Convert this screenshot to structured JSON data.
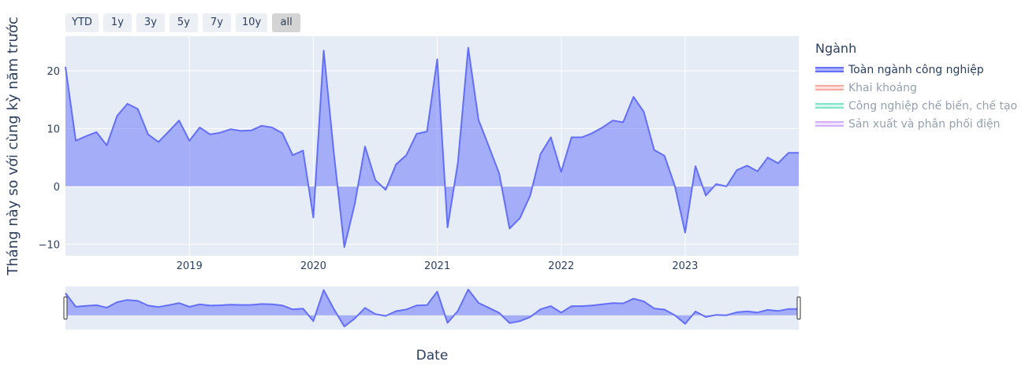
{
  "range_buttons": [
    {
      "label": "YTD",
      "active": false
    },
    {
      "label": "1y",
      "active": false
    },
    {
      "label": "3y",
      "active": false
    },
    {
      "label": "5y",
      "active": false
    },
    {
      "label": "7y",
      "active": false
    },
    {
      "label": "10y",
      "active": false
    },
    {
      "label": "all",
      "active": true
    }
  ],
  "legend": {
    "title": "Ngành",
    "items": [
      {
        "label": "Toàn ngành công nghiệp",
        "color": "#636efa",
        "visible": true
      },
      {
        "label": "Khai khoáng",
        "color": "#ef553b",
        "visible": false
      },
      {
        "label": "Công nghiệp chế biến, chế tạo",
        "color": "#00cc96",
        "visible": false
      },
      {
        "label": "Sản xuất và phân phối điện",
        "color": "#ab63fa",
        "visible": false
      }
    ]
  },
  "chart_data": {
    "type": "area",
    "title": "",
    "xlabel": "Date",
    "ylabel": "Tháng này so với cùng kỳ năm trước",
    "xlim": [
      "2018-01",
      "2023-12"
    ],
    "ylim": [
      -12,
      26
    ],
    "x_ticks": [
      "2019",
      "2020",
      "2021",
      "2022",
      "2023"
    ],
    "y_ticks": [
      -10,
      0,
      10,
      20
    ],
    "grid": true,
    "legend_position": "right",
    "rangeslider": true,
    "x": [
      "2018-01",
      "2018-02",
      "2018-03",
      "2018-04",
      "2018-05",
      "2018-06",
      "2018-07",
      "2018-08",
      "2018-09",
      "2018-10",
      "2018-11",
      "2018-12",
      "2019-01",
      "2019-02",
      "2019-03",
      "2019-04",
      "2019-05",
      "2019-06",
      "2019-07",
      "2019-08",
      "2019-09",
      "2019-10",
      "2019-11",
      "2019-12",
      "2020-01",
      "2020-02",
      "2020-03",
      "2020-04",
      "2020-05",
      "2020-06",
      "2020-07",
      "2020-08",
      "2020-09",
      "2020-10",
      "2020-11",
      "2020-12",
      "2021-01",
      "2021-02",
      "2021-03",
      "2021-04",
      "2021-05",
      "2021-06",
      "2021-07",
      "2021-08",
      "2021-09",
      "2021-10",
      "2021-11",
      "2021-12",
      "2022-01",
      "2022-02",
      "2022-03",
      "2022-04",
      "2022-05",
      "2022-06",
      "2022-07",
      "2022-08",
      "2022-09",
      "2022-10",
      "2022-11",
      "2022-12",
      "2023-01",
      "2023-02",
      "2023-03",
      "2023-04",
      "2023-05",
      "2023-06",
      "2023-07",
      "2023-08",
      "2023-09",
      "2023-10",
      "2023-11",
      "2023-12"
    ],
    "series": [
      {
        "name": "Toàn ngành công nghiệp",
        "color": "#636efa",
        "values": [
          20.7,
          7.9,
          8.7,
          9.4,
          7.1,
          12.2,
          14.3,
          13.4,
          9.0,
          7.7,
          9.5,
          11.4,
          7.9,
          10.2,
          9.0,
          9.3,
          9.9,
          9.6,
          9.7,
          10.5,
          10.2,
          9.2,
          5.4,
          6.2,
          -5.4,
          23.5,
          5.5,
          -10.5,
          -3.1,
          6.9,
          1.1,
          -0.6,
          3.8,
          5.4,
          9.1,
          9.5,
          22.0,
          -7.1,
          4.1,
          24.0,
          11.5,
          6.9,
          2.2,
          -7.3,
          -5.5,
          -1.6,
          5.6,
          8.5,
          2.5,
          8.5,
          8.5,
          9.2,
          10.2,
          11.4,
          11.1,
          15.5,
          12.9,
          6.3,
          5.3,
          0.1,
          -8.0,
          3.5,
          -1.6,
          0.4,
          0.0,
          2.8,
          3.6,
          2.6,
          5.0,
          4.0,
          5.8,
          5.8
        ]
      }
    ]
  }
}
